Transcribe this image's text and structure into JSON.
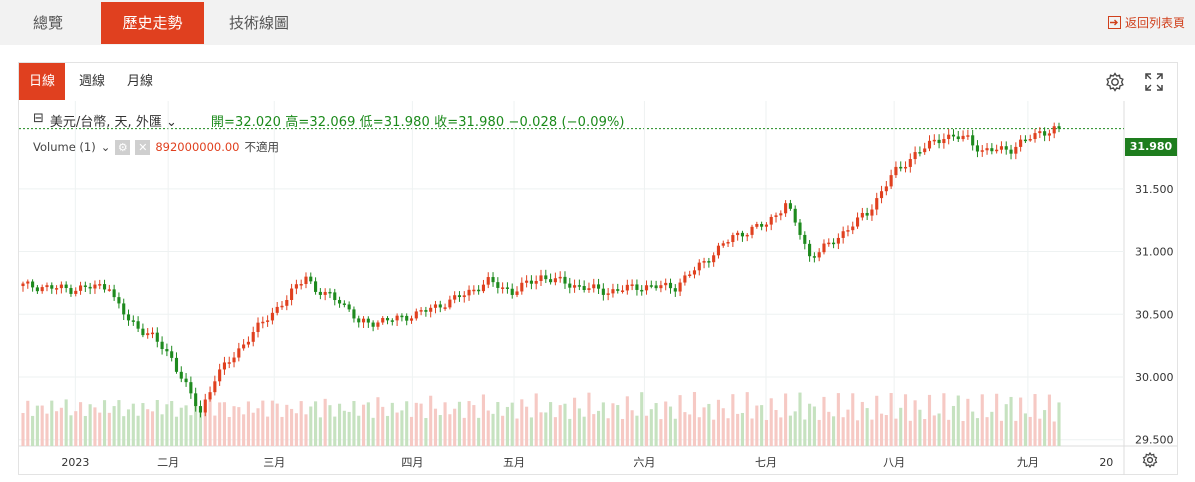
{
  "tabs": [
    {
      "label": "總覽",
      "active": false
    },
    {
      "label": "歷史走勢",
      "active": true
    },
    {
      "label": "技術線圖",
      "active": false
    }
  ],
  "back_link": "返回列表頁",
  "periods": [
    {
      "label": "日線",
      "active": true
    },
    {
      "label": "週線",
      "active": false
    },
    {
      "label": "月線",
      "active": false
    }
  ],
  "legend": {
    "symbol": "美元/台幣, 天, 外匯",
    "ohlc": "開=32.020  高=32.069  低=31.980  收=31.980  −0.028 (−0.09%)"
  },
  "volume_legend": {
    "label": "Volume (1)",
    "value": "892000000.00",
    "status": "不適用"
  },
  "last_price": "31.980",
  "colors": {
    "up": "#e0401f",
    "down": "#1e8a1e",
    "accent": "#e0401f"
  },
  "chart_data": {
    "type": "candlestick",
    "title": "",
    "y_ticks": [
      "31.980",
      "31.500",
      "31.000",
      "30.500",
      "30.000",
      "29.500"
    ],
    "y_range": [
      29.45,
      32.2
    ],
    "x_ticks": [
      "2023",
      "二月",
      "三月",
      "四月",
      "五月",
      "六月",
      "七月",
      "八月",
      "九月",
      "20"
    ],
    "close_path": [
      {
        "x": 0,
        "y": 30.73
      },
      {
        "x": 10,
        "y": 30.7
      },
      {
        "x": 18,
        "y": 30.73
      },
      {
        "x": 19,
        "y": 30.62
      },
      {
        "x": 22,
        "y": 30.45
      },
      {
        "x": 27,
        "y": 30.32
      },
      {
        "x": 31,
        "y": 30.15
      },
      {
        "x": 35,
        "y": 29.85
      },
      {
        "x": 37,
        "y": 29.72
      },
      {
        "x": 40,
        "y": 29.99
      },
      {
        "x": 45,
        "y": 30.22
      },
      {
        "x": 51,
        "y": 30.48
      },
      {
        "x": 55,
        "y": 30.62
      },
      {
        "x": 59,
        "y": 30.82
      },
      {
        "x": 61,
        "y": 30.68
      },
      {
        "x": 66,
        "y": 30.62
      },
      {
        "x": 70,
        "y": 30.43
      },
      {
        "x": 76,
        "y": 30.45
      },
      {
        "x": 82,
        "y": 30.5
      },
      {
        "x": 90,
        "y": 30.62
      },
      {
        "x": 97,
        "y": 30.76
      },
      {
        "x": 102,
        "y": 30.68
      },
      {
        "x": 108,
        "y": 30.8
      },
      {
        "x": 116,
        "y": 30.72
      },
      {
        "x": 122,
        "y": 30.68
      },
      {
        "x": 128,
        "y": 30.72
      },
      {
        "x": 136,
        "y": 30.72
      },
      {
        "x": 142,
        "y": 30.92
      },
      {
        "x": 148,
        "y": 31.12
      },
      {
        "x": 155,
        "y": 31.22
      },
      {
        "x": 159,
        "y": 31.38
      },
      {
        "x": 162,
        "y": 31.15
      },
      {
        "x": 164,
        "y": 30.96
      },
      {
        "x": 168,
        "y": 31.05
      },
      {
        "x": 173,
        "y": 31.22
      },
      {
        "x": 176,
        "y": 31.3
      },
      {
        "x": 181,
        "y": 31.6
      },
      {
        "x": 186,
        "y": 31.78
      },
      {
        "x": 192,
        "y": 31.92
      },
      {
        "x": 197,
        "y": 31.9
      },
      {
        "x": 200,
        "y": 31.8
      },
      {
        "x": 206,
        "y": 31.82
      },
      {
        "x": 212,
        "y": 31.95
      },
      {
        "x": 216,
        "y": 31.98
      }
    ]
  }
}
